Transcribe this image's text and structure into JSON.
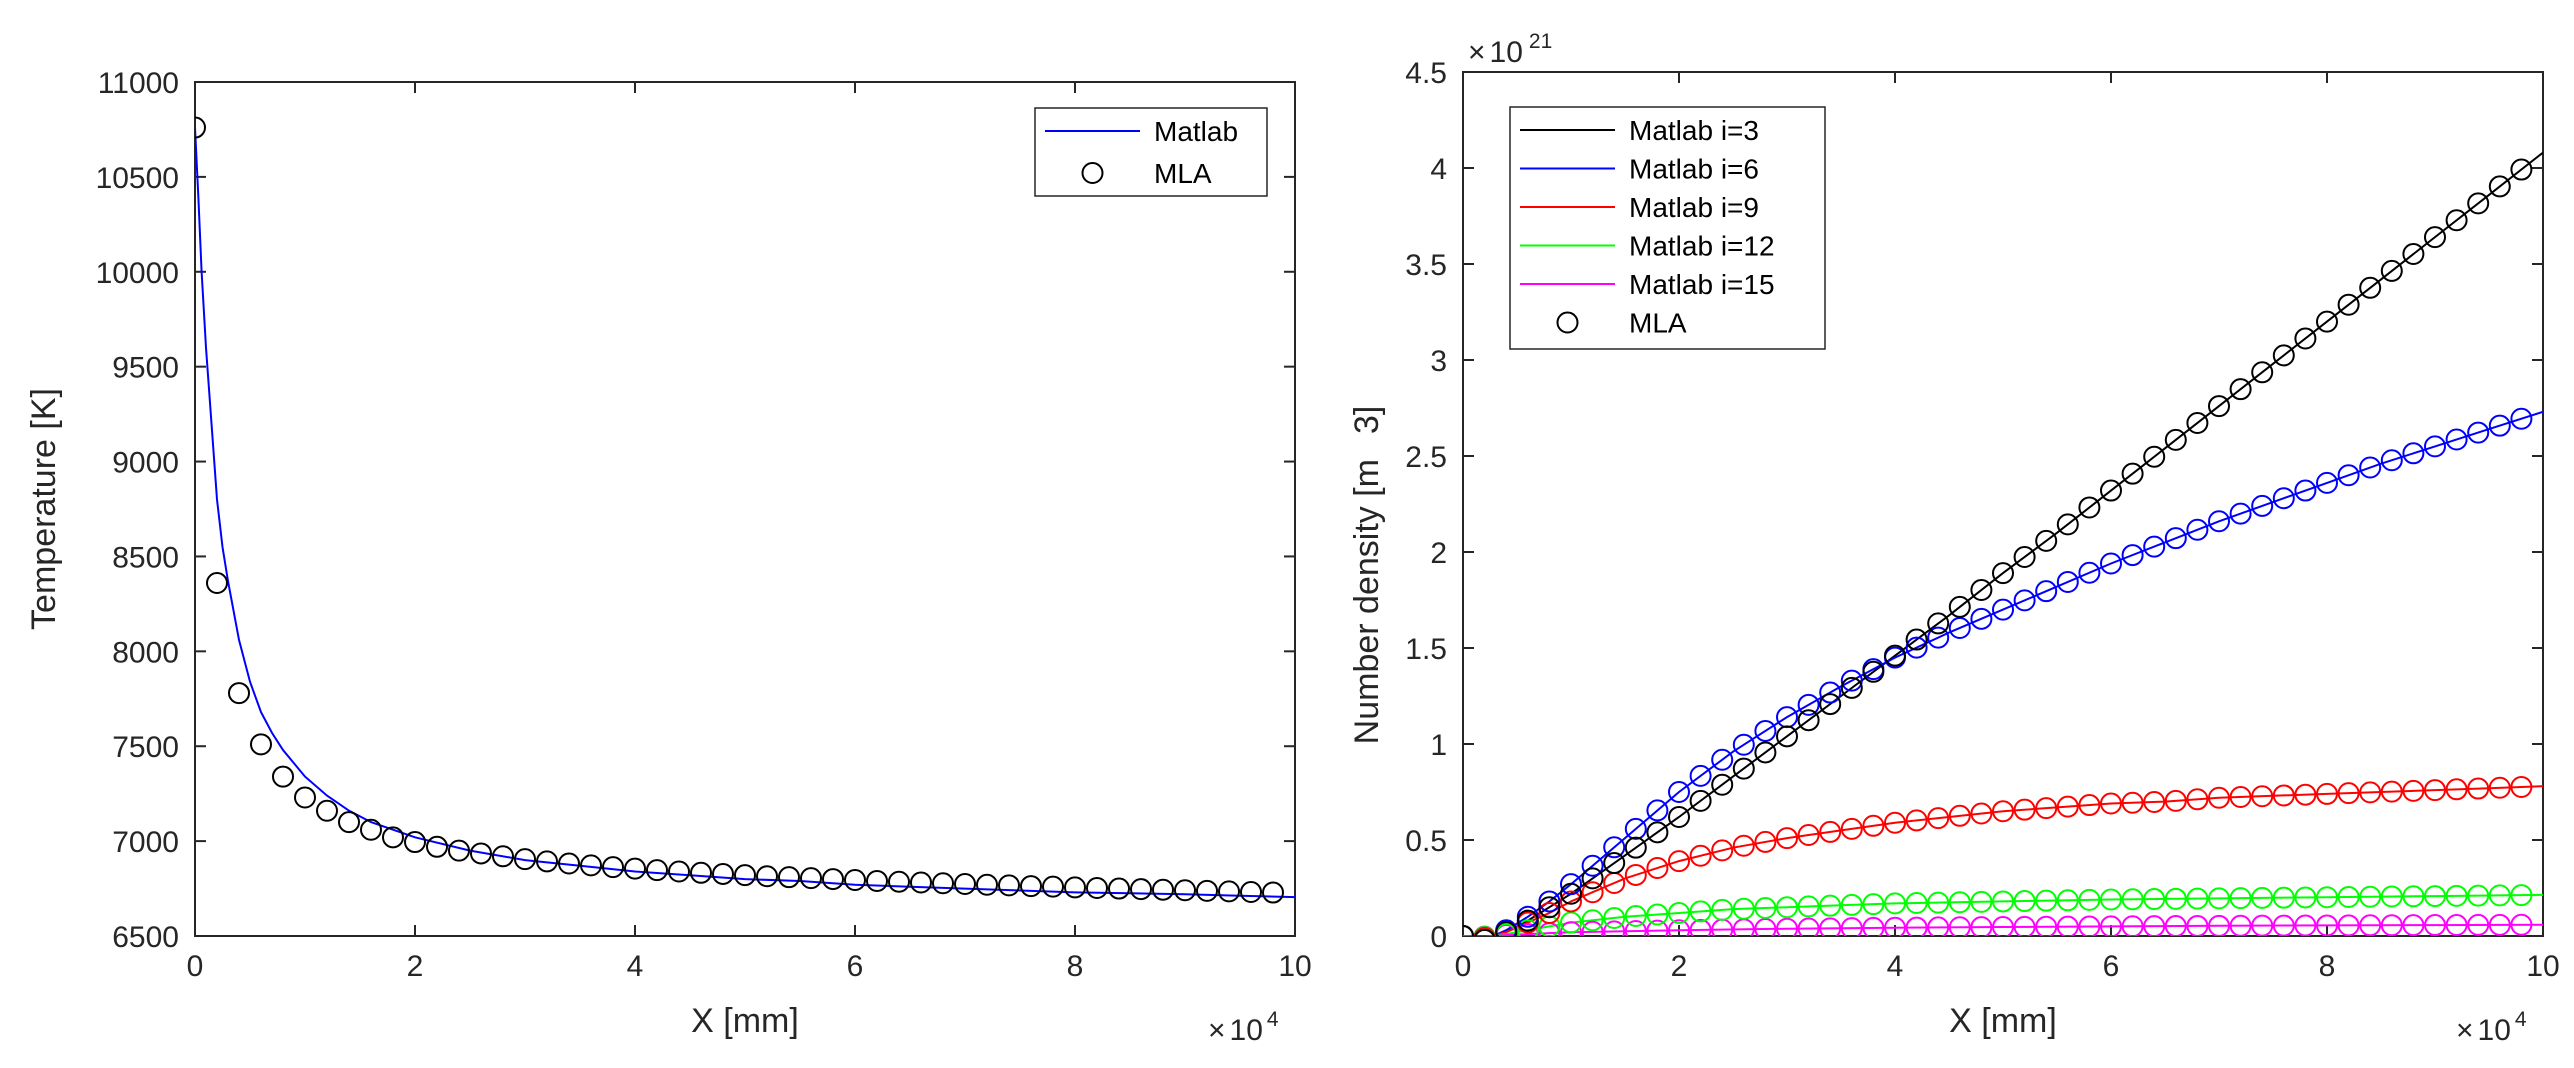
{
  "chart_data": [
    {
      "type": "line",
      "xlabel": "X [mm]",
      "ylabel": "Temperature [K]",
      "xlim": [
        0,
        100000
      ],
      "ylim": [
        6500,
        11000
      ],
      "x_ticks": [
        "0",
        "2",
        "4",
        "6",
        "8",
        "10"
      ],
      "y_ticks": [
        "6500",
        "7000",
        "7500",
        "8000",
        "8500",
        "9000",
        "9500",
        "10000",
        "10500",
        "11000"
      ],
      "x_multiplier": {
        "base": "10",
        "exp": "4"
      },
      "legend": {
        "location": "top-right",
        "entries": [
          "Matlab",
          "MLA"
        ]
      },
      "series": [
        {
          "name": "Matlab",
          "style": "line",
          "color": "#0000ff",
          "points": [
            [
              0,
              10760
            ],
            [
              300,
              10400
            ],
            [
              600,
              10000
            ],
            [
              1000,
              9600
            ],
            [
              1500,
              9200
            ],
            [
              2000,
              8800
            ],
            [
              2500,
              8550
            ],
            [
              3000,
              8370
            ],
            [
              4000,
              8060
            ],
            [
              5000,
              7840
            ],
            [
              6000,
              7680
            ],
            [
              7000,
              7570
            ],
            [
              8000,
              7480
            ],
            [
              10000,
              7340
            ],
            [
              12000,
              7240
            ],
            [
              14000,
              7160
            ],
            [
              16000,
              7100
            ],
            [
              18000,
              7060
            ],
            [
              20000,
              7020
            ],
            [
              25000,
              6950
            ],
            [
              30000,
              6900
            ],
            [
              35000,
              6870
            ],
            [
              40000,
              6840
            ],
            [
              45000,
              6820
            ],
            [
              50000,
              6800
            ],
            [
              55000,
              6790
            ],
            [
              60000,
              6770
            ],
            [
              65000,
              6760
            ],
            [
              70000,
              6750
            ],
            [
              75000,
              6740
            ],
            [
              80000,
              6730
            ],
            [
              85000,
              6725
            ],
            [
              90000,
              6720
            ],
            [
              95000,
              6712
            ],
            [
              100000,
              6705
            ]
          ]
        },
        {
          "name": "MLA",
          "style": "markers",
          "marker": "circle",
          "color": "#000000",
          "x": [
            0,
            2000,
            4000,
            6000,
            8000,
            10000,
            12000,
            14000,
            16000,
            18000,
            20000,
            22000,
            24000,
            26000,
            28000,
            30000,
            32000,
            34000,
            36000,
            38000,
            40000,
            42000,
            44000,
            46000,
            48000,
            50000,
            52000,
            54000,
            56000,
            58000,
            60000,
            62000,
            64000,
            66000,
            68000,
            70000,
            72000,
            74000,
            76000,
            78000,
            80000,
            82000,
            84000,
            86000,
            88000,
            90000,
            92000,
            94000,
            96000,
            98000
          ],
          "y": [
            10760,
            8360,
            7780,
            7510,
            7340,
            7230,
            7160,
            7100,
            7060,
            7020,
            6995,
            6970,
            6950,
            6935,
            6920,
            6905,
            6893,
            6882,
            6872,
            6863,
            6855,
            6847,
            6840,
            6833,
            6827,
            6821,
            6815,
            6810,
            6805,
            6800,
            6795,
            6790,
            6786,
            6782,
            6778,
            6774,
            6770,
            6767,
            6763,
            6760,
            6756,
            6753,
            6750,
            6747,
            6744,
            6741,
            6738,
            6735,
            6732,
            6729
          ]
        }
      ]
    },
    {
      "type": "line",
      "xlabel": "X [mm]",
      "ylabel": "Number density [m",
      "ylabel_suffix": "3]",
      "xlim": [
        0,
        100000
      ],
      "ylim": [
        0,
        4.5
      ],
      "x_ticks": [
        "0",
        "2",
        "4",
        "6",
        "8",
        "10"
      ],
      "y_ticks": [
        "0",
        "0.5",
        "1",
        "1.5",
        "2",
        "2.5",
        "3",
        "3.5",
        "4",
        "4.5"
      ],
      "x_multiplier": {
        "base": "10",
        "exp": "4"
      },
      "y_multiplier": {
        "base": "10",
        "exp": "21"
      },
      "legend": {
        "location": "top-left",
        "entries": [
          "Matlab i=3",
          "Matlab i=6",
          "Matlab i=9",
          "Matlab i=12",
          "Matlab i=15",
          "MLA"
        ]
      },
      "series": [
        {
          "name": "Matlab i=3",
          "color": "#000000",
          "style": "line",
          "points": [
            [
              0,
              0
            ],
            [
              2000,
              -0.02
            ],
            [
              4000,
              0.02
            ],
            [
              6000,
              0.08
            ],
            [
              8000,
              0.15
            ],
            [
              10000,
              0.22
            ],
            [
              15000,
              0.42
            ],
            [
              20000,
              0.62
            ],
            [
              25000,
              0.83
            ],
            [
              30000,
              1.04
            ],
            [
              35000,
              1.25
            ],
            [
              40000,
              1.46
            ],
            [
              45000,
              1.67
            ],
            [
              50000,
              1.89
            ],
            [
              55000,
              2.1
            ],
            [
              60000,
              2.32
            ],
            [
              65000,
              2.54
            ],
            [
              70000,
              2.76
            ],
            [
              75000,
              2.98
            ],
            [
              80000,
              3.2
            ],
            [
              85000,
              3.42
            ],
            [
              90000,
              3.64
            ],
            [
              95000,
              3.86
            ],
            [
              100000,
              4.08
            ]
          ]
        },
        {
          "name": "Matlab i=6",
          "color": "#0000ff",
          "style": "line",
          "points": [
            [
              0,
              0
            ],
            [
              2000,
              -0.02
            ],
            [
              4000,
              0.03
            ],
            [
              6000,
              0.1
            ],
            [
              8000,
              0.18
            ],
            [
              10000,
              0.27
            ],
            [
              15000,
              0.51
            ],
            [
              20000,
              0.75
            ],
            [
              25000,
              0.96
            ],
            [
              30000,
              1.14
            ],
            [
              35000,
              1.3
            ],
            [
              40000,
              1.45
            ],
            [
              45000,
              1.58
            ],
            [
              50000,
              1.7
            ],
            [
              55000,
              1.82
            ],
            [
              60000,
              1.94
            ],
            [
              65000,
              2.05
            ],
            [
              70000,
              2.16
            ],
            [
              75000,
              2.26
            ],
            [
              80000,
              2.36
            ],
            [
              85000,
              2.46
            ],
            [
              90000,
              2.55
            ],
            [
              95000,
              2.64
            ],
            [
              100000,
              2.73
            ]
          ]
        },
        {
          "name": "Matlab i=9",
          "color": "#ff0000",
          "style": "line",
          "points": [
            [
              0,
              0
            ],
            [
              2000,
              -0.01
            ],
            [
              4000,
              0.02
            ],
            [
              6000,
              0.07
            ],
            [
              8000,
              0.12
            ],
            [
              10000,
              0.18
            ],
            [
              15000,
              0.3
            ],
            [
              20000,
              0.39
            ],
            [
              25000,
              0.46
            ],
            [
              30000,
              0.51
            ],
            [
              35000,
              0.55
            ],
            [
              40000,
              0.59
            ],
            [
              45000,
              0.62
            ],
            [
              50000,
              0.65
            ],
            [
              55000,
              0.67
            ],
            [
              60000,
              0.69
            ],
            [
              65000,
              0.7
            ],
            [
              70000,
              0.72
            ],
            [
              75000,
              0.73
            ],
            [
              80000,
              0.74
            ],
            [
              85000,
              0.75
            ],
            [
              90000,
              0.76
            ],
            [
              95000,
              0.77
            ],
            [
              100000,
              0.78
            ]
          ]
        },
        {
          "name": "Matlab i=12",
          "color": "#00ff00",
          "style": "line",
          "points": [
            [
              0,
              0
            ],
            [
              2000,
              -0.005
            ],
            [
              4000,
              0.01
            ],
            [
              6000,
              0.03
            ],
            [
              8000,
              0.05
            ],
            [
              10000,
              0.07
            ],
            [
              15000,
              0.1
            ],
            [
              20000,
              0.12
            ],
            [
              25000,
              0.14
            ],
            [
              30000,
              0.15
            ],
            [
              35000,
              0.16
            ],
            [
              40000,
              0.17
            ],
            [
              45000,
              0.175
            ],
            [
              50000,
              0.18
            ],
            [
              55000,
              0.185
            ],
            [
              60000,
              0.19
            ],
            [
              65000,
              0.193
            ],
            [
              70000,
              0.196
            ],
            [
              75000,
              0.199
            ],
            [
              80000,
              0.202
            ],
            [
              85000,
              0.205
            ],
            [
              90000,
              0.208
            ],
            [
              95000,
              0.211
            ],
            [
              100000,
              0.214
            ]
          ]
        },
        {
          "name": "Matlab i=15",
          "color": "#ff00ff",
          "style": "line",
          "points": [
            [
              0,
              0
            ],
            [
              2000,
              -0.003
            ],
            [
              4000,
              0.005
            ],
            [
              6000,
              0.01
            ],
            [
              8000,
              0.015
            ],
            [
              10000,
              0.02
            ],
            [
              20000,
              0.03
            ],
            [
              30000,
              0.038
            ],
            [
              40000,
              0.043
            ],
            [
              50000,
              0.047
            ],
            [
              60000,
              0.05
            ],
            [
              70000,
              0.053
            ],
            [
              80000,
              0.055
            ],
            [
              90000,
              0.057
            ],
            [
              100000,
              0.059
            ]
          ]
        },
        {
          "name": "MLA",
          "style": "markers",
          "marker": "circle",
          "marker_colors_follow_series": true
        }
      ]
    }
  ]
}
